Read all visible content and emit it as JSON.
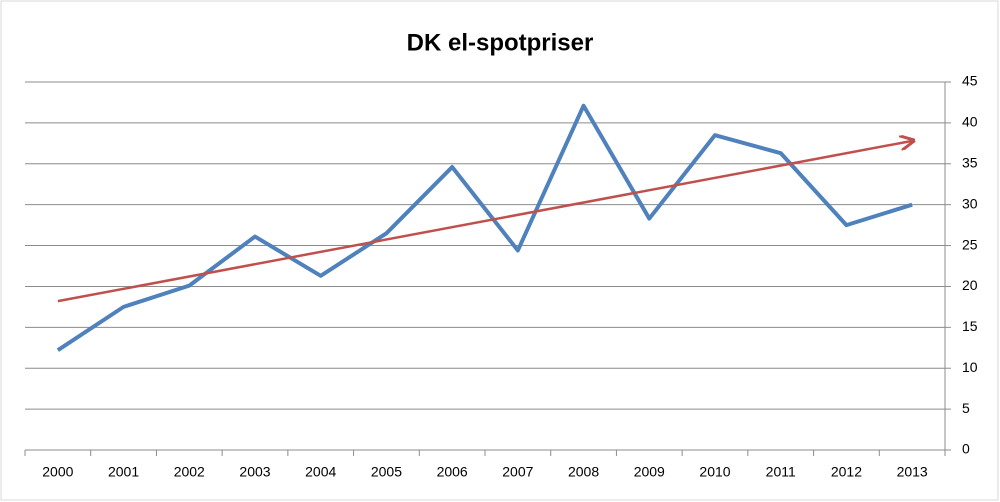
{
  "chart_data": {
    "type": "line",
    "title": "DK el-spotpriser",
    "categories": [
      "2000",
      "2001",
      "2002",
      "2003",
      "2004",
      "2005",
      "2006",
      "2007",
      "2008",
      "2009",
      "2010",
      "2011",
      "2012",
      "2013"
    ],
    "values": [
      12.2,
      17.5,
      20.1,
      26.1,
      21.3,
      26.5,
      34.6,
      24.4,
      42.1,
      28.3,
      38.5,
      36.3,
      27.5,
      30.0
    ],
    "color": "#4f81bd",
    "trendline": {
      "values": [
        18.2,
        37.8
      ],
      "color": "#c0504d"
    },
    "ylim": [
      0,
      45
    ],
    "yticks": [
      0,
      5,
      10,
      15,
      20,
      25,
      30,
      35,
      40,
      45
    ],
    "grid": true
  }
}
